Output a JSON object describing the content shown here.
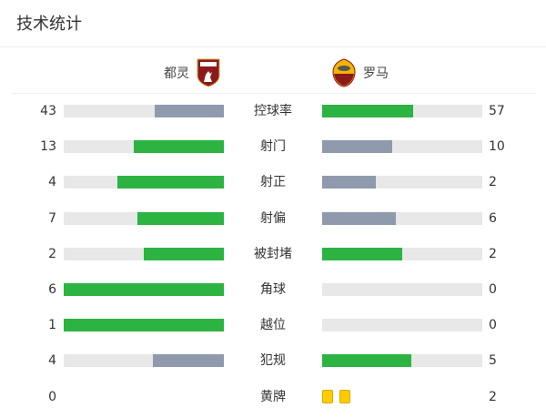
{
  "title": "技术统计",
  "home": {
    "name": "都灵",
    "logo": "torino-crest-icon"
  },
  "away": {
    "name": "罗马",
    "logo": "roma-crest-icon"
  },
  "colors": {
    "win": "#2db342",
    "lose": "#8f9aad",
    "track": "#e8e8e8",
    "yellow": "#ffcc00"
  },
  "stats": [
    {
      "label": "控球率",
      "home": 43,
      "away": 57
    },
    {
      "label": "射门",
      "home": 13,
      "away": 10
    },
    {
      "label": "射正",
      "home": 4,
      "away": 2
    },
    {
      "label": "射偏",
      "home": 7,
      "away": 6
    },
    {
      "label": "被封堵",
      "home": 2,
      "away": 2
    },
    {
      "label": "角球",
      "home": 6,
      "away": 0
    },
    {
      "label": "越位",
      "home": 1,
      "away": 0
    },
    {
      "label": "犯规",
      "home": 4,
      "away": 5
    }
  ],
  "yellow_cards": {
    "label": "黄牌",
    "home": 0,
    "away": 2
  }
}
